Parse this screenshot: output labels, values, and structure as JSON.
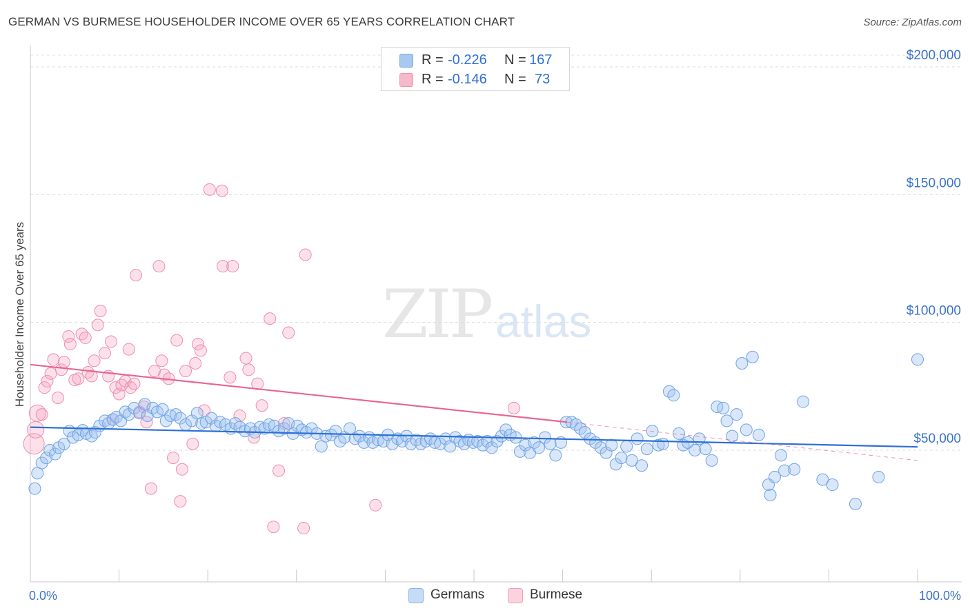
{
  "header": {
    "title": "GERMAN VS BURMESE HOUSEHOLDER INCOME OVER 65 YEARS CORRELATION CHART",
    "source": "Source: ZipAtlas.com"
  },
  "watermark": {
    "zip": "ZIP",
    "atlas": "atlas"
  },
  "legend": {
    "rows": [
      {
        "r_label": "R =",
        "r_value": "-0.226",
        "n_label": "N =",
        "n_value": "167",
        "color": "#a9c8f0"
      },
      {
        "r_label": "R =",
        "r_value": "-0.146",
        "n_label": "N =",
        "n_value": "73",
        "color": "#f6b8cb"
      }
    ]
  },
  "bottom_legend": {
    "germans": "Germans",
    "burmese": "Burmese"
  },
  "chart_data": {
    "type": "scatter",
    "title": "GERMAN VS BURMESE HOUSEHOLDER INCOME OVER 65 YEARS CORRELATION CHART",
    "xlabel": "",
    "ylabel": "Householder Income Over 65 years",
    "xlim": [
      0,
      100
    ],
    "ylim": [
      0,
      210000
    ],
    "x_tick_labels": [
      "0.0%",
      "100.0%"
    ],
    "y_ticks": [
      50000,
      100000,
      150000,
      200000
    ],
    "y_tick_labels": [
      "$50,000",
      "$100,000",
      "$150,000",
      "$200,000"
    ],
    "grid": true,
    "legend_position": "top-center",
    "colors": {
      "germans": "#6fa3e6",
      "burmese": "#f08cab",
      "germans_line": "#2e6fd6",
      "burmese_line": "#e8668f"
    },
    "series": [
      {
        "name": "Germans",
        "r": -0.226,
        "n": 167,
        "trend": {
          "x": [
            0,
            100
          ],
          "y": [
            59000,
            51300
          ]
        },
        "points": [
          [
            0.5,
            35000
          ],
          [
            0.8,
            41000
          ],
          [
            1.3,
            45000
          ],
          [
            1.8,
            47000
          ],
          [
            2.2,
            50000
          ],
          [
            2.8,
            48500
          ],
          [
            3.2,
            51000
          ],
          [
            3.8,
            52500
          ],
          [
            4.4,
            57500
          ],
          [
            4.8,
            55000
          ],
          [
            5.4,
            56000
          ],
          [
            5.9,
            57800
          ],
          [
            6.3,
            56500
          ],
          [
            6.9,
            55500
          ],
          [
            7.3,
            57000
          ],
          [
            7.8,
            59500
          ],
          [
            8.4,
            61500
          ],
          [
            8.8,
            60500
          ],
          [
            9.3,
            62000
          ],
          [
            9.7,
            63000
          ],
          [
            10.2,
            61500
          ],
          [
            10.7,
            65000
          ],
          [
            11.1,
            64000
          ],
          [
            11.7,
            66500
          ],
          [
            12.3,
            64500
          ],
          [
            12.9,
            68000
          ],
          [
            13.2,
            63500
          ],
          [
            13.8,
            66500
          ],
          [
            14.3,
            65000
          ],
          [
            14.9,
            66000
          ],
          [
            15.3,
            61500
          ],
          [
            15.8,
            63500
          ],
          [
            16.4,
            64000
          ],
          [
            16.9,
            62500
          ],
          [
            17.5,
            60000
          ],
          [
            18.2,
            61500
          ],
          [
            18.8,
            64500
          ],
          [
            19.3,
            60500
          ],
          [
            19.8,
            61000
          ],
          [
            20.4,
            62500
          ],
          [
            20.9,
            59500
          ],
          [
            21.4,
            61000
          ],
          [
            22.0,
            60000
          ],
          [
            22.6,
            58500
          ],
          [
            23.1,
            60500
          ],
          [
            23.6,
            59000
          ],
          [
            24.2,
            57500
          ],
          [
            24.8,
            58500
          ],
          [
            25.3,
            57000
          ],
          [
            25.9,
            59000
          ],
          [
            26.4,
            58500
          ],
          [
            26.9,
            60000
          ],
          [
            27.5,
            59500
          ],
          [
            28.0,
            57500
          ],
          [
            28.6,
            58500
          ],
          [
            29.1,
            60500
          ],
          [
            29.6,
            56500
          ],
          [
            30.1,
            59500
          ],
          [
            30.6,
            58000
          ],
          [
            31.1,
            57000
          ],
          [
            31.7,
            58500
          ],
          [
            32.3,
            56500
          ],
          [
            32.8,
            51500
          ],
          [
            33.3,
            55500
          ],
          [
            33.9,
            56000
          ],
          [
            34.4,
            57500
          ],
          [
            34.9,
            53500
          ],
          [
            35.4,
            55000
          ],
          [
            36.0,
            58500
          ],
          [
            36.6,
            54500
          ],
          [
            37.1,
            55500
          ],
          [
            37.6,
            53000
          ],
          [
            38.2,
            55000
          ],
          [
            38.6,
            53000
          ],
          [
            39.2,
            54000
          ],
          [
            39.8,
            53500
          ],
          [
            40.3,
            56000
          ],
          [
            40.8,
            52500
          ],
          [
            41.4,
            54500
          ],
          [
            41.9,
            53500
          ],
          [
            42.4,
            55500
          ],
          [
            42.9,
            52500
          ],
          [
            43.5,
            54000
          ],
          [
            44.0,
            52500
          ],
          [
            44.6,
            53500
          ],
          [
            45.1,
            54500
          ],
          [
            45.6,
            53000
          ],
          [
            46.2,
            52500
          ],
          [
            46.8,
            54500
          ],
          [
            47.3,
            51500
          ],
          [
            47.9,
            55000
          ],
          [
            48.4,
            53500
          ],
          [
            48.9,
            52500
          ],
          [
            49.4,
            54000
          ],
          [
            49.9,
            53000
          ],
          [
            50.4,
            53500
          ],
          [
            51.0,
            52000
          ],
          [
            51.5,
            53500
          ],
          [
            52.0,
            51000
          ],
          [
            52.6,
            53500
          ],
          [
            53.1,
            55500
          ],
          [
            53.6,
            58000
          ],
          [
            54.1,
            56000
          ],
          [
            54.7,
            55000
          ],
          [
            55.2,
            49500
          ],
          [
            55.8,
            52000
          ],
          [
            56.3,
            49000
          ],
          [
            56.8,
            53000
          ],
          [
            57.3,
            51000
          ],
          [
            58.0,
            55000
          ],
          [
            58.6,
            52500
          ],
          [
            59.2,
            48000
          ],
          [
            59.8,
            53000
          ],
          [
            60.4,
            61000
          ],
          [
            61.0,
            61000
          ],
          [
            61.5,
            60000
          ],
          [
            62.0,
            58500
          ],
          [
            62.5,
            57000
          ],
          [
            63.1,
            54500
          ],
          [
            63.7,
            53000
          ],
          [
            64.3,
            51000
          ],
          [
            64.9,
            49000
          ],
          [
            65.5,
            52000
          ],
          [
            66.0,
            44500
          ],
          [
            66.6,
            47000
          ],
          [
            67.2,
            51500
          ],
          [
            67.8,
            46000
          ],
          [
            68.4,
            54500
          ],
          [
            68.9,
            44000
          ],
          [
            69.5,
            50500
          ],
          [
            70.1,
            57500
          ],
          [
            70.8,
            52000
          ],
          [
            71.3,
            52500
          ],
          [
            72.0,
            73000
          ],
          [
            72.5,
            71500
          ],
          [
            73.1,
            56500
          ],
          [
            73.6,
            52000
          ],
          [
            74.1,
            53000
          ],
          [
            74.9,
            50000
          ],
          [
            75.4,
            54500
          ],
          [
            76.1,
            50500
          ],
          [
            76.8,
            46000
          ],
          [
            77.4,
            67000
          ],
          [
            78.1,
            66500
          ],
          [
            78.5,
            61500
          ],
          [
            79.1,
            55500
          ],
          [
            79.6,
            64000
          ],
          [
            80.2,
            84000
          ],
          [
            80.7,
            58000
          ],
          [
            81.4,
            86500
          ],
          [
            82.1,
            56000
          ],
          [
            83.2,
            36500
          ],
          [
            83.4,
            32500
          ],
          [
            83.9,
            39500
          ],
          [
            84.6,
            48000
          ],
          [
            85.0,
            42000
          ],
          [
            86.1,
            42500
          ],
          [
            87.1,
            69000
          ],
          [
            89.3,
            38500
          ],
          [
            90.4,
            36500
          ],
          [
            93.0,
            29000
          ],
          [
            95.6,
            39500
          ],
          [
            100.0,
            85500
          ]
        ]
      },
      {
        "name": "Burmese",
        "r": -0.146,
        "n": 73,
        "trend": {
          "x": [
            0,
            60.5
          ],
          "y": [
            83500,
            61000
          ]
        },
        "trend_dashed": {
          "x": [
            60.5,
            100
          ],
          "y": [
            61000,
            46000
          ]
        },
        "points": [
          [
            0.4,
            52500
          ],
          [
            0.6,
            58000
          ],
          [
            0.8,
            64500
          ],
          [
            1.3,
            64000
          ],
          [
            1.6,
            74500
          ],
          [
            1.9,
            77000
          ],
          [
            2.3,
            80000
          ],
          [
            2.6,
            85500
          ],
          [
            3.1,
            70500
          ],
          [
            3.5,
            81500
          ],
          [
            3.8,
            84500
          ],
          [
            4.3,
            94500
          ],
          [
            4.5,
            91500
          ],
          [
            5.0,
            77500
          ],
          [
            5.4,
            78000
          ],
          [
            5.8,
            95500
          ],
          [
            6.2,
            94000
          ],
          [
            6.5,
            80500
          ],
          [
            6.9,
            79000
          ],
          [
            7.2,
            85000
          ],
          [
            7.6,
            99000
          ],
          [
            7.9,
            104500
          ],
          [
            8.4,
            88000
          ],
          [
            8.8,
            79000
          ],
          [
            9.1,
            92500
          ],
          [
            9.3,
            62000
          ],
          [
            9.6,
            74500
          ],
          [
            10.0,
            72000
          ],
          [
            10.3,
            75500
          ],
          [
            10.7,
            77000
          ],
          [
            11.1,
            89500
          ],
          [
            11.3,
            74500
          ],
          [
            11.7,
            76000
          ],
          [
            11.9,
            118500
          ],
          [
            12.3,
            65000
          ],
          [
            12.8,
            67000
          ],
          [
            13.1,
            61000
          ],
          [
            13.6,
            35000
          ],
          [
            14.0,
            81000
          ],
          [
            14.5,
            122000
          ],
          [
            14.8,
            85000
          ],
          [
            15.1,
            79500
          ],
          [
            15.6,
            78000
          ],
          [
            16.1,
            47000
          ],
          [
            16.5,
            93000
          ],
          [
            16.9,
            30000
          ],
          [
            17.1,
            42500
          ],
          [
            17.5,
            81000
          ],
          [
            18.3,
            52500
          ],
          [
            18.6,
            84000
          ],
          [
            18.9,
            91500
          ],
          [
            19.2,
            89000
          ],
          [
            19.6,
            65500
          ],
          [
            20.2,
            152000
          ],
          [
            21.6,
            151500
          ],
          [
            21.7,
            122000
          ],
          [
            22.5,
            78500
          ],
          [
            22.8,
            122000
          ],
          [
            23.6,
            63500
          ],
          [
            24.3,
            86000
          ],
          [
            24.6,
            81500
          ],
          [
            25.2,
            55000
          ],
          [
            25.6,
            76000
          ],
          [
            26.1,
            67500
          ],
          [
            27.0,
            101500
          ],
          [
            27.4,
            20000
          ],
          [
            28.0,
            42000
          ],
          [
            28.6,
            60500
          ],
          [
            29.1,
            96000
          ],
          [
            30.8,
            19500
          ],
          [
            31.0,
            126500
          ],
          [
            38.9,
            28500
          ],
          [
            54.5,
            66500
          ]
        ]
      }
    ]
  }
}
